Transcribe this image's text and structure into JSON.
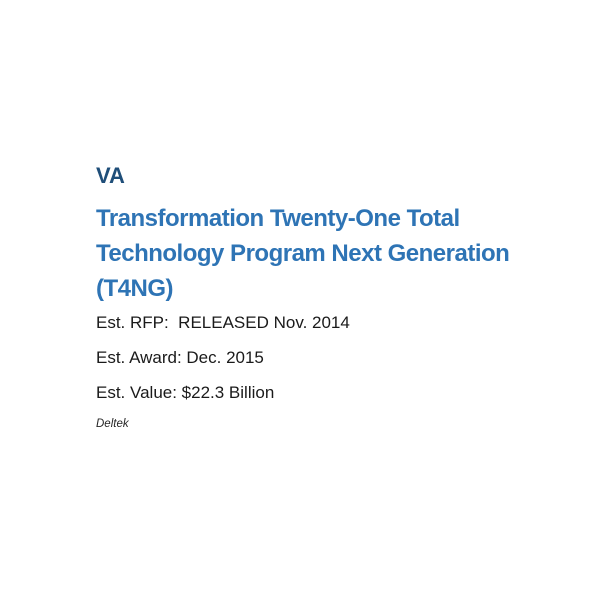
{
  "document": {
    "agency": "VA",
    "title": "Transformation Twenty-One Total Technology Program Next Generation (T4NG)",
    "title_lines": [
      "Transformation Twenty-One Total",
      "Technology Program Next Generation",
      "(T4NG)"
    ],
    "details": [
      "Est. RFP:  RELEASED Nov. 2014",
      "Est. Award: Dec. 2015",
      "Est. Value: $22.3 Billion"
    ],
    "source": "Deltek",
    "colors": {
      "agency_heading": "#1F4E79",
      "title": "#2E74B5",
      "body_text": "#1A1A1A",
      "background": "#FFFFFF"
    }
  }
}
